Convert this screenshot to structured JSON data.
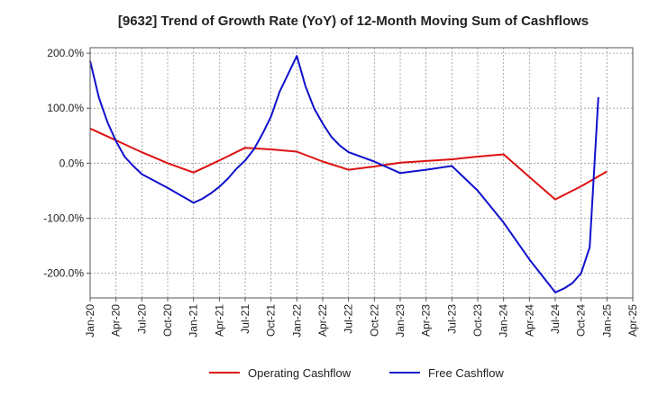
{
  "chart_data": {
    "type": "line",
    "title": "[9632]  Trend of Growth Rate (YoY) of 12-Month Moving Sum of Cashflows",
    "xlabel": "",
    "ylabel": "",
    "x_ticks": [
      "Jan-20",
      "Apr-20",
      "Jul-20",
      "Oct-20",
      "Jan-21",
      "Apr-21",
      "Jul-21",
      "Oct-21",
      "Jan-22",
      "Apr-22",
      "Jul-22",
      "Oct-22",
      "Jan-23",
      "Apr-23",
      "Jul-23",
      "Oct-23",
      "Jan-24",
      "Apr-24",
      "Jul-24",
      "Oct-24",
      "Jan-25",
      "Apr-25"
    ],
    "y_ticks": [
      {
        "value": 200,
        "label": "200.0%"
      },
      {
        "value": 100,
        "label": "100.0%"
      },
      {
        "value": 0,
        "label": "0.0%"
      },
      {
        "value": -100,
        "label": "-100.0%"
      },
      {
        "value": -200,
        "label": "-200.0%"
      }
    ],
    "xlim": [
      "2020-01",
      "2025-04"
    ],
    "ylim": [
      -245,
      210
    ],
    "grid": true,
    "legend_position": "bottom",
    "series": [
      {
        "name": "Operating Cashflow",
        "color": "#dd1111",
        "points": [
          [
            "2020-01",
            63
          ],
          [
            "2020-07",
            20
          ],
          [
            "2020-10",
            0
          ],
          [
            "2021-01",
            -17
          ],
          [
            "2021-04",
            5
          ],
          [
            "2021-07",
            28
          ],
          [
            "2021-10",
            25
          ],
          [
            "2022-01",
            21
          ],
          [
            "2022-04",
            3
          ],
          [
            "2022-07",
            -12
          ],
          [
            "2022-10",
            -6
          ],
          [
            "2023-01",
            1
          ],
          [
            "2023-04",
            4
          ],
          [
            "2023-07",
            7
          ],
          [
            "2023-10",
            12
          ],
          [
            "2024-01",
            16
          ],
          [
            "2024-04",
            -25
          ],
          [
            "2024-07",
            -66
          ],
          [
            "2024-10",
            -42
          ],
          [
            "2025-01",
            -15
          ]
        ]
      },
      {
        "name": "Free Cashflow",
        "color": "#1111cc",
        "points": [
          [
            "2020-01",
            186
          ],
          [
            "2020-02",
            120
          ],
          [
            "2020-03",
            75
          ],
          [
            "2020-04",
            40
          ],
          [
            "2020-05",
            12
          ],
          [
            "2020-06",
            -5
          ],
          [
            "2020-07",
            -20
          ],
          [
            "2020-10",
            -45
          ],
          [
            "2021-01",
            -72
          ],
          [
            "2021-02",
            -65
          ],
          [
            "2021-03",
            -55
          ],
          [
            "2021-04",
            -43
          ],
          [
            "2021-05",
            -28
          ],
          [
            "2021-06",
            -10
          ],
          [
            "2021-07",
            5
          ],
          [
            "2021-08",
            25
          ],
          [
            "2021-09",
            53
          ],
          [
            "2021-10",
            85
          ],
          [
            "2021-11",
            130
          ],
          [
            "2022-01",
            195
          ],
          [
            "2022-02",
            140
          ],
          [
            "2022-03",
            100
          ],
          [
            "2022-04",
            72
          ],
          [
            "2022-05",
            48
          ],
          [
            "2022-06",
            32
          ],
          [
            "2022-07",
            20
          ],
          [
            "2022-10",
            3
          ],
          [
            "2023-01",
            -18
          ],
          [
            "2023-04",
            -12
          ],
          [
            "2023-07",
            -5
          ],
          [
            "2023-10",
            -50
          ],
          [
            "2024-01",
            -108
          ],
          [
            "2024-04",
            -175
          ],
          [
            "2024-07",
            -235
          ],
          [
            "2024-08",
            -228
          ],
          [
            "2024-09",
            -218
          ],
          [
            "2024-10",
            -200
          ],
          [
            "2024-11",
            -153
          ],
          [
            "2024-12",
            120
          ]
        ]
      }
    ]
  }
}
